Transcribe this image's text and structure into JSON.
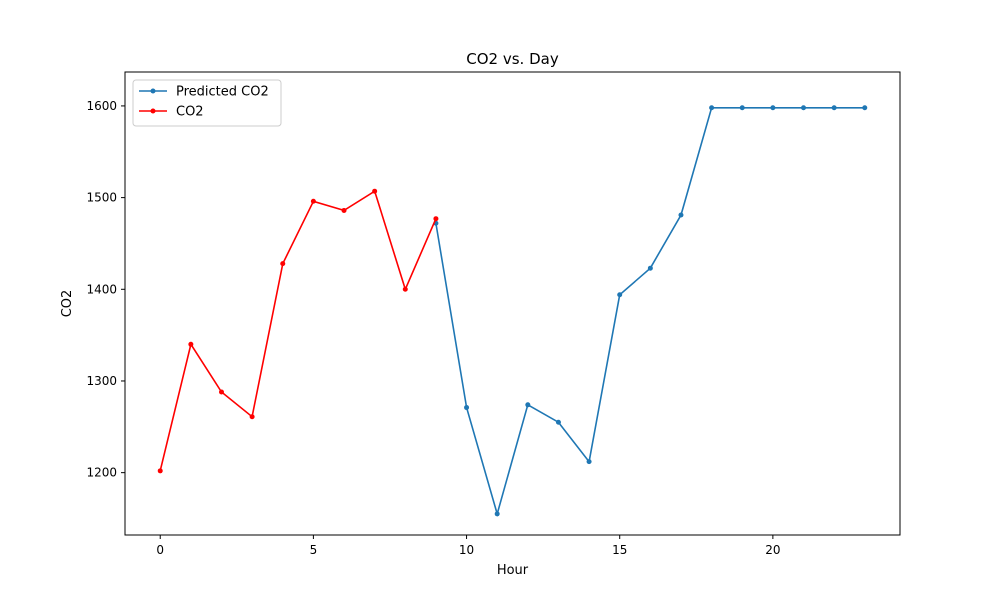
{
  "chart_data": {
    "type": "line",
    "title": "CO2 vs. Day",
    "xlabel": "Hour",
    "ylabel": "CO2",
    "xlim": [
      -1.15,
      24.15
    ],
    "ylim": [
      1132,
      1637
    ],
    "xticks": [
      0,
      5,
      10,
      15,
      20
    ],
    "yticks": [
      1200,
      1300,
      1400,
      1500,
      1600
    ],
    "grid": false,
    "legend_position": "top-left",
    "series": [
      {
        "name": "Predicted CO2",
        "color": "#1f77b4",
        "x": [
          9,
          10,
          11,
          12,
          13,
          14,
          15,
          16,
          17,
          18,
          19,
          20,
          21,
          22,
          23
        ],
        "y": [
          1472,
          1271,
          1155,
          1274,
          1255,
          1212,
          1394,
          1423,
          1481,
          1598,
          1598,
          1598,
          1598,
          1598,
          1598
        ]
      },
      {
        "name": "CO2",
        "color": "#ff0000",
        "x": [
          0,
          1,
          2,
          3,
          4,
          5,
          6,
          7,
          8,
          9
        ],
        "y": [
          1202,
          1340,
          1288,
          1261,
          1428,
          1496,
          1486,
          1507,
          1400,
          1477
        ]
      }
    ]
  }
}
